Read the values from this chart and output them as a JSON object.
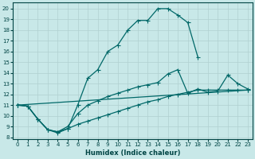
{
  "bg_color": "#c8e8e8",
  "line_color": "#006868",
  "xlabel": "Humidex (Indice chaleur)",
  "xlim": [
    -0.5,
    23.5
  ],
  "ylim": [
    7.8,
    20.6
  ],
  "yticks": [
    8,
    9,
    10,
    11,
    12,
    13,
    14,
    15,
    16,
    17,
    18,
    19,
    20
  ],
  "xticks": [
    0,
    1,
    2,
    3,
    4,
    5,
    6,
    7,
    8,
    9,
    10,
    11,
    12,
    13,
    14,
    15,
    16,
    17,
    18,
    19,
    20,
    21,
    22,
    23
  ],
  "curve1_x": [
    0,
    1,
    2,
    3,
    4,
    5,
    6,
    7,
    8,
    9,
    10,
    11,
    12,
    13,
    14,
    15,
    16,
    17,
    18
  ],
  "curve1_y": [
    11.0,
    10.9,
    9.7,
    8.7,
    8.4,
    8.8,
    11.0,
    13.5,
    14.3,
    16.0,
    16.6,
    18.0,
    18.9,
    18.9,
    20.0,
    20.0,
    19.4,
    18.7,
    15.5
  ],
  "curve2_x": [
    0,
    1,
    2,
    3,
    4,
    5,
    6,
    7,
    8,
    9,
    10,
    11,
    12,
    13,
    14,
    15,
    16,
    17,
    18,
    19,
    20,
    21,
    22,
    23
  ],
  "curve2_y": [
    11.0,
    10.9,
    9.7,
    8.7,
    8.5,
    9.0,
    10.2,
    11.0,
    11.4,
    11.8,
    12.1,
    12.4,
    12.7,
    12.9,
    13.1,
    13.9,
    14.3,
    12.1,
    12.5,
    12.2,
    12.3,
    13.8,
    13.0,
    12.5
  ],
  "curve3_x": [
    0,
    1,
    2,
    3,
    4,
    5,
    6,
    7,
    8,
    9,
    10,
    11,
    12,
    13,
    14,
    15,
    16,
    17,
    18,
    19,
    20,
    21,
    22,
    23
  ],
  "curve3_y": [
    11.0,
    10.9,
    9.7,
    8.7,
    8.5,
    8.8,
    9.2,
    9.5,
    9.8,
    10.1,
    10.4,
    10.7,
    11.0,
    11.3,
    11.5,
    11.8,
    12.0,
    12.2,
    12.4,
    12.4,
    12.4,
    12.4,
    12.4,
    12.4
  ],
  "curve4_x": [
    0,
    23
  ],
  "curve4_y": [
    11.0,
    12.4
  ]
}
